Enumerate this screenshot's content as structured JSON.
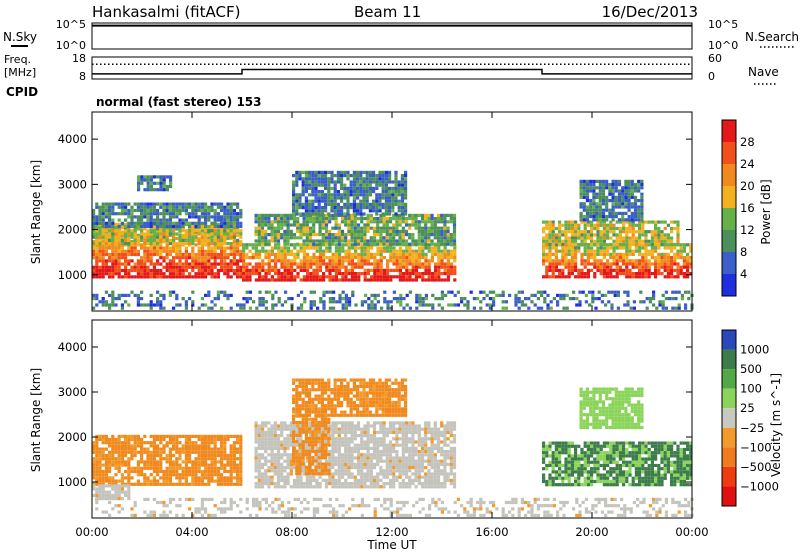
{
  "header": {
    "station": "Hankasalmi (fitACF)",
    "beam": "Beam 11",
    "date": "16/Dec/2013"
  },
  "colors": {
    "power_scale": [
      "#1f2fe0",
      "#3a5fc8",
      "#4c8f5a",
      "#66b04a",
      "#f2b11e",
      "#f08a1e",
      "#f2501a",
      "#e41818"
    ],
    "velocity_scale": [
      "#2a48b8",
      "#3c7c4a",
      "#52a844",
      "#8bd45a",
      "#c8c8c0",
      "#f29a2a",
      "#f07a1e",
      "#f03a10",
      "#e01010"
    ],
    "velocity_orange": "#f08a1e",
    "velocity_grey": "#c4c4bc",
    "velocity_green": "#4a9a52"
  },
  "chart_data": [
    {
      "type": "line",
      "panel": "nsky-nsearch",
      "left_label": "N.Sky",
      "right_label": "N.Search",
      "left_ticks": [
        "10^5",
        "10^0"
      ],
      "right_ticks": [
        "10^5",
        "10^0"
      ],
      "series": [
        {
          "name": "N.Sky",
          "style": "solid",
          "x": [
            0,
            4,
            8,
            12,
            16,
            20,
            24
          ],
          "values": [
            0.9,
            0.9,
            0.9,
            0.9,
            0.9,
            0.9,
            0.9
          ]
        }
      ]
    },
    {
      "type": "line",
      "panel": "freq-nave",
      "left_label": "Freq.",
      "left_unit": "[MHz]",
      "right_label": "Nave",
      "left_ticks": [
        "18",
        "8"
      ],
      "right_ticks": [
        "60",
        "0"
      ],
      "series": [
        {
          "name": "Freq.",
          "style": "solid",
          "x": [
            0,
            6,
            6,
            18,
            18,
            24
          ],
          "values": [
            10.3,
            10.3,
            12.3,
            12.3,
            10.3,
            10.3
          ]
        },
        {
          "name": "Nave",
          "style": "dotted",
          "x": [
            0,
            24
          ],
          "values": [
            40,
            40
          ]
        }
      ]
    },
    {
      "type": "table",
      "panel": "cpid",
      "label": "CPID",
      "value": "normal (fast stereo) 153"
    },
    {
      "type": "heatmap",
      "panel": "power",
      "ylabel": "Slant Range [km]",
      "ylim": [
        200,
        4600
      ],
      "yticks": [
        1000,
        2000,
        3000,
        4000
      ],
      "colorbar_label": "Power [dB]",
      "colorbar_ticks": [
        4,
        8,
        12,
        16,
        20,
        24,
        28
      ],
      "colorbar_range": [
        0,
        32
      ],
      "regions": [
        {
          "t0": 0.0,
          "t1": 6.0,
          "r0": 950,
          "r1": 2050,
          "level": 28
        },
        {
          "t0": 0.0,
          "t1": 6.0,
          "r0": 1700,
          "r1": 2150,
          "level": 16
        },
        {
          "t0": 0.0,
          "t1": 6.0,
          "r0": 2100,
          "r1": 2600,
          "level": 8
        },
        {
          "t0": 1.8,
          "t1": 3.2,
          "r0": 2900,
          "r1": 3200,
          "level": 8
        },
        {
          "t0": 6.0,
          "t1": 14.5,
          "r0": 900,
          "r1": 1700,
          "level": 28
        },
        {
          "t0": 6.5,
          "t1": 14.5,
          "r0": 1700,
          "r1": 2350,
          "level": 12
        },
        {
          "t0": 8.0,
          "t1": 12.5,
          "r0": 2350,
          "r1": 3300,
          "level": 8
        },
        {
          "t0": 18.0,
          "t1": 24.0,
          "r0": 950,
          "r1": 1700,
          "level": 28
        },
        {
          "t0": 18.0,
          "t1": 23.5,
          "r0": 1700,
          "r1": 2200,
          "level": 16
        },
        {
          "t0": 19.5,
          "t1": 22.0,
          "r0": 2200,
          "r1": 3100,
          "level": 8
        },
        {
          "t0": 0.0,
          "t1": 24.0,
          "r0": 250,
          "r1": 650,
          "level": 8
        }
      ]
    },
    {
      "type": "heatmap",
      "panel": "velocity",
      "ylabel": "Slant Range [km]",
      "ylim": [
        200,
        4600
      ],
      "yticks": [
        1000,
        2000,
        3000,
        4000
      ],
      "xlabel": "Time UT",
      "xticks": [
        "00:00",
        "04:00",
        "08:00",
        "12:00",
        "16:00",
        "20:00",
        "00:00"
      ],
      "xlim": [
        0,
        24
      ],
      "colorbar_label": "Velocity [m s^-1]",
      "colorbar_ticks": [
        "1000",
        "500",
        "100",
        "25",
        "−25",
        "−100",
        "−500",
        "−1000"
      ],
      "regions": [
        {
          "t0": 0.0,
          "t1": 6.0,
          "r0": 950,
          "r1": 2050,
          "level": -300
        },
        {
          "t0": 0.0,
          "t1": 1.5,
          "r0": 650,
          "r1": 950,
          "level": 0
        },
        {
          "t0": 6.5,
          "t1": 14.5,
          "r0": 900,
          "r1": 2350,
          "level": 0
        },
        {
          "t0": 8.0,
          "t1": 9.5,
          "r0": 1200,
          "r1": 2500,
          "level": -300
        },
        {
          "t0": 8.0,
          "t1": 12.5,
          "r0": 2500,
          "r1": 3300,
          "level": -300
        },
        {
          "t0": 18.0,
          "t1": 24.0,
          "r0": 950,
          "r1": 1900,
          "level": 300
        },
        {
          "t0": 19.5,
          "t1": 22.0,
          "r0": 2200,
          "r1": 3100,
          "level": 60
        },
        {
          "t0": 0.0,
          "t1": 24.0,
          "r0": 250,
          "r1": 650,
          "level": 0
        }
      ]
    }
  ]
}
